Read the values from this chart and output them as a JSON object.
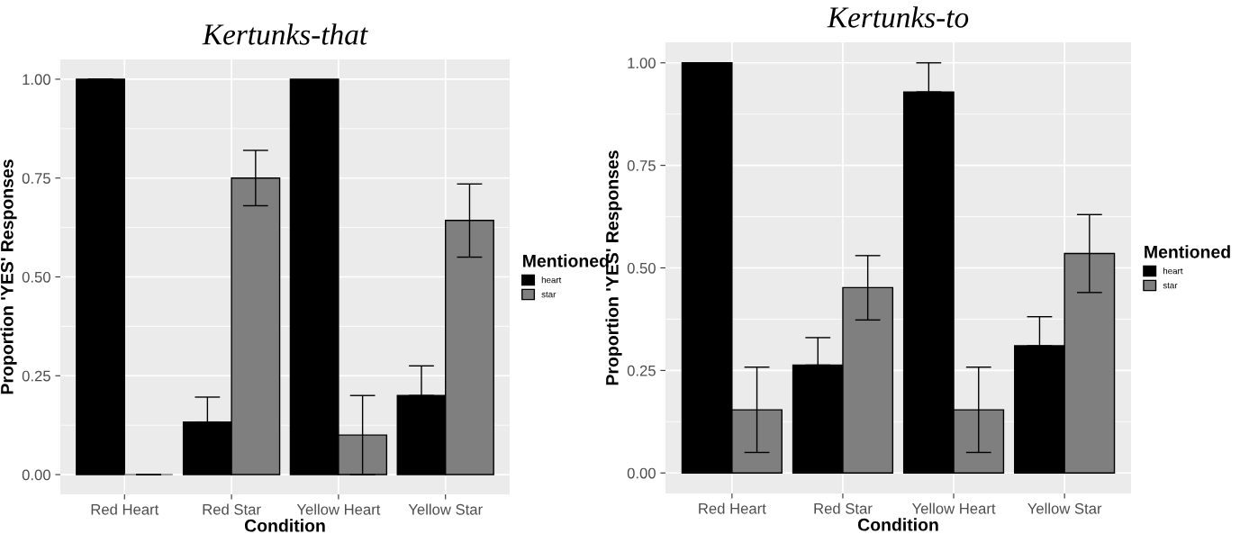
{
  "chart_data": [
    {
      "type": "bar",
      "title": "Kertunks-that",
      "xlabel": "Condition",
      "ylabel": "Proportion 'YES' Responses",
      "legend_title": "Mentioned",
      "legend": "right",
      "grid": true,
      "categories": [
        "Red Heart",
        "Red Star",
        "Yellow Heart",
        "Yellow Star"
      ],
      "ylim": [
        -0.05,
        1.05
      ],
      "yticks": [
        {
          "value": 0,
          "label": "0.00"
        },
        {
          "value": 0.25,
          "label": "0.25"
        },
        {
          "value": 0.5,
          "label": "0.50"
        },
        {
          "value": 0.75,
          "label": "0.75"
        },
        {
          "value": 1,
          "label": "1.00"
        }
      ],
      "series": [
        {
          "name": "heart",
          "color": "#000000",
          "values": [
            1.0,
            0.133,
            1.0,
            0.2
          ],
          "errors": [
            [
              1.0,
              1.0
            ],
            [
              0.133,
              0.196
            ],
            null,
            [
              0.2,
              0.275
            ]
          ]
        },
        {
          "name": "star",
          "color": "#7f7f7f",
          "values": [
            0.0,
            0.75,
            0.1,
            0.643
          ],
          "errors": [
            [
              0.0,
              0.0
            ],
            [
              0.68,
              0.82
            ],
            [
              0.0,
              0.2
            ],
            [
              0.55,
              0.735
            ]
          ]
        }
      ]
    },
    {
      "type": "bar",
      "title": "Kertunks-to",
      "xlabel": "Condition",
      "ylabel": "Proportion 'YES' Responses",
      "legend_title": "Mentioned",
      "legend": "right",
      "grid": true,
      "categories": [
        "Red Heart",
        "Red Star",
        "Yellow Heart",
        "Yellow Star"
      ],
      "ylim": [
        -0.05,
        1.05
      ],
      "yticks": [
        {
          "value": 0,
          "label": "0.00"
        },
        {
          "value": 0.25,
          "label": "0.25"
        },
        {
          "value": 0.5,
          "label": "0.50"
        },
        {
          "value": 0.75,
          "label": "0.75"
        },
        {
          "value": 1,
          "label": "1.00"
        }
      ],
      "series": [
        {
          "name": "heart",
          "color": "#000000",
          "values": [
            1.0,
            0.263,
            0.929,
            0.31
          ],
          "errors": [
            [
              1.0,
              1.0
            ],
            [
              0.263,
              0.33
            ],
            [
              0.929,
              1.0
            ],
            [
              0.31,
              0.381
            ]
          ]
        },
        {
          "name": "star",
          "color": "#7f7f7f",
          "values": [
            0.154,
            0.452,
            0.154,
            0.535
          ],
          "errors": [
            [
              0.05,
              0.258
            ],
            [
              0.373,
              0.53
            ],
            [
              0.05,
              0.258
            ],
            [
              0.44,
              0.63
            ]
          ]
        }
      ]
    }
  ]
}
